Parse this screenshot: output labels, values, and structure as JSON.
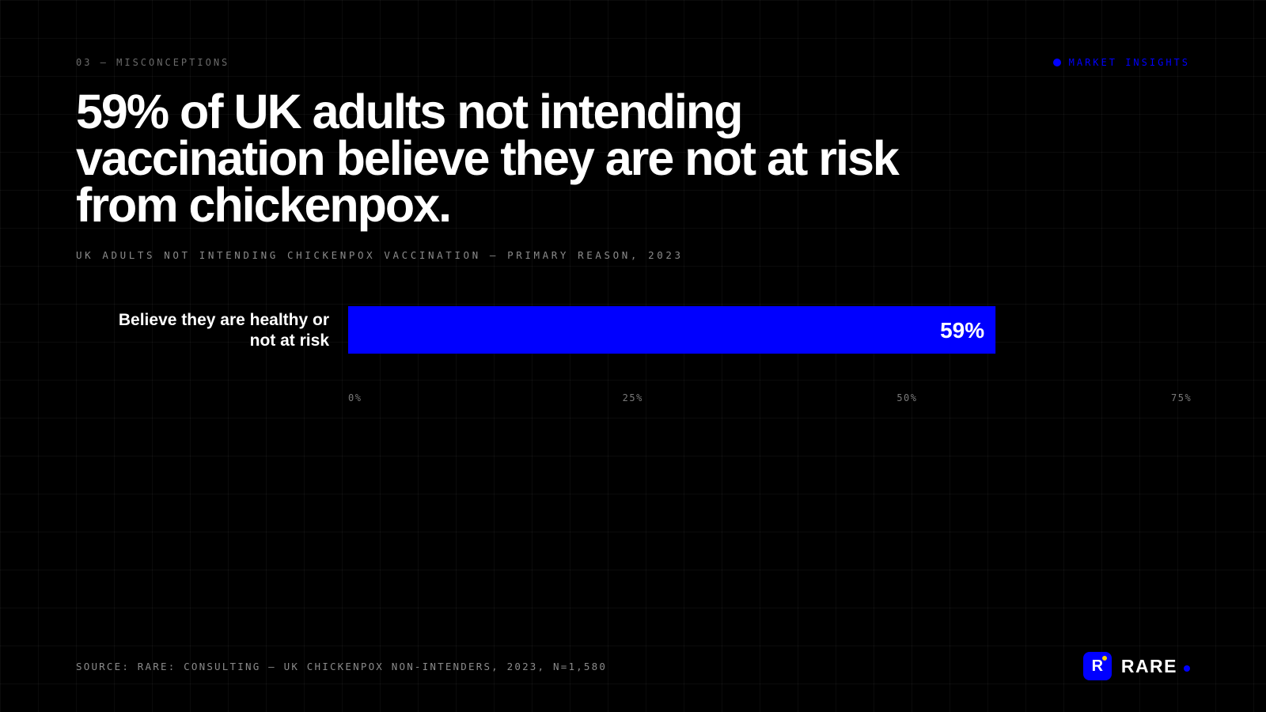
{
  "header": {
    "section_label": "03 — MISCONCEPTIONS",
    "tag_label": "MARKET INSIGHTS"
  },
  "headline": "59% of UK adults not intending vaccination believe they are not at risk from chickenpox.",
  "footer": {
    "source": "SOURCE: RARE: CONSULTING — UK CHICKENPOX NON-INTENDERS, 2023, N=1,580",
    "brand_name": "RARE",
    "brand_mark_letter": "R"
  },
  "colors": {
    "accent": "#0000ff",
    "background": "#000000",
    "text": "#ffffff",
    "brand_spark": "#ffd600"
  },
  "chart_data": {
    "type": "bar",
    "orientation": "horizontal",
    "subtitle": "UK ADULTS NOT INTENDING CHICKENPOX VACCINATION — PRIMARY REASON, 2023",
    "categories": [
      "Believe they are healthy or not at risk"
    ],
    "category_lines": [
      [
        "Believe they are healthy or",
        "not at risk"
      ]
    ],
    "values": [
      59
    ],
    "data_labels": [
      "59%"
    ],
    "unit": "%",
    "xlim": [
      0,
      75
    ],
    "ticks": [
      0,
      25,
      50,
      75
    ],
    "tick_labels": [
      "0%",
      "25%",
      "50%",
      "75%"
    ],
    "grid": false,
    "legend": "none"
  }
}
